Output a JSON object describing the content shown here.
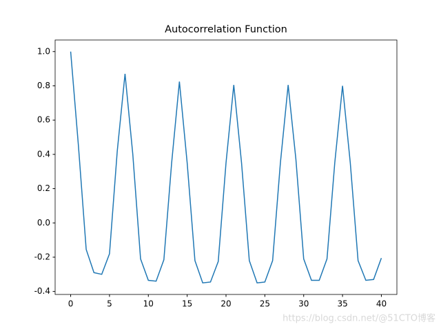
{
  "chart_data": {
    "type": "line",
    "title": "Autocorrelation Function",
    "x": [
      0,
      1,
      2,
      3,
      4,
      5,
      6,
      7,
      8,
      9,
      10,
      11,
      12,
      13,
      14,
      15,
      16,
      17,
      18,
      19,
      20,
      21,
      22,
      23,
      24,
      25,
      26,
      27,
      28,
      29,
      30,
      31,
      32,
      33,
      34,
      35,
      36,
      37,
      38,
      39,
      40
    ],
    "values": [
      1.0,
      0.45,
      -0.155,
      -0.29,
      -0.3,
      -0.18,
      0.42,
      0.87,
      0.4,
      -0.21,
      -0.335,
      -0.34,
      -0.215,
      0.35,
      0.825,
      0.35,
      -0.22,
      -0.35,
      -0.345,
      -0.225,
      0.35,
      0.805,
      0.35,
      -0.22,
      -0.35,
      -0.345,
      -0.22,
      0.35,
      0.805,
      0.37,
      -0.21,
      -0.335,
      -0.335,
      -0.21,
      0.35,
      0.8,
      0.35,
      -0.22,
      -0.335,
      -0.33,
      -0.205
    ],
    "color": "#1f77b4",
    "xlim": [
      -2,
      42
    ],
    "xticks": [
      0,
      5,
      10,
      15,
      20,
      25,
      30,
      35,
      40
    ],
    "ylim": [
      -0.4175,
      1.0675
    ],
    "yticks": [
      {
        "value": -0.4,
        "label": "-0.4"
      },
      {
        "value": -0.2,
        "label": "-0.2"
      },
      {
        "value": 0,
        "label": "0.0"
      },
      {
        "value": 0.2,
        "label": "0.2"
      },
      {
        "value": 0.4,
        "label": "0.4"
      },
      {
        "value": 0.6,
        "label": "0.6"
      },
      {
        "value": 0.8,
        "label": "0.8"
      },
      {
        "value": 1,
        "label": "1.0"
      }
    ],
    "watermark": "https://blog.csdn.net/@51CTO博客"
  }
}
